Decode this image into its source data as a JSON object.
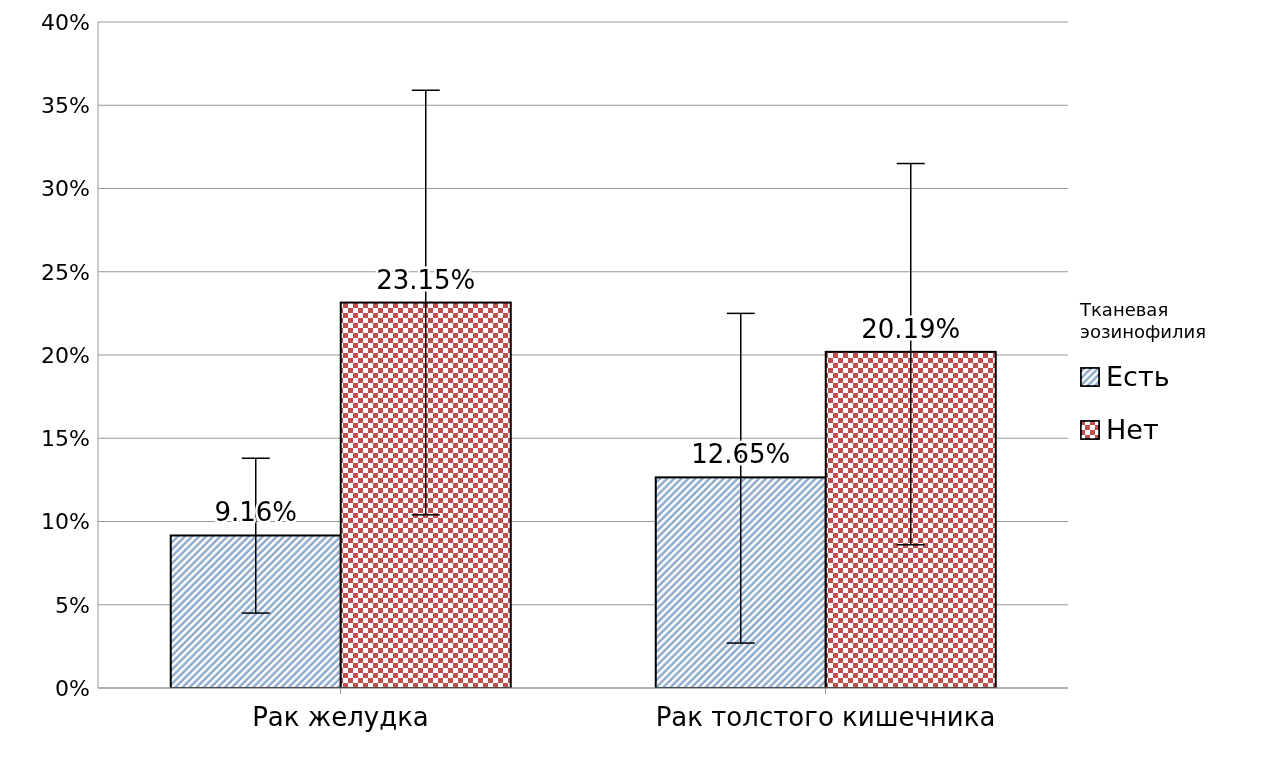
{
  "chart_data": {
    "type": "bar",
    "categories": [
      "Рак желудка",
      "Рак толстого кишечника"
    ],
    "legend_title": "Тканевая эозинофилия",
    "series": [
      {
        "name": "Есть",
        "color": "#8eaacb",
        "values": [
          9.16,
          12.65
        ],
        "errors": [
          [
            4.5,
            13.8
          ],
          [
            2.7,
            22.5
          ]
        ],
        "value_labels": [
          "9.16%",
          "12.65%"
        ]
      },
      {
        "name": "Нет",
        "color": "#c0504d",
        "values": [
          23.15,
          20.19
        ],
        "errors": [
          [
            10.4,
            35.9
          ],
          [
            8.6,
            31.5
          ]
        ],
        "value_labels": [
          "23.15%",
          "20.19%"
        ]
      }
    ],
    "ylim": [
      0,
      40
    ],
    "yticks": [
      {
        "value": 0,
        "label": "0%"
      },
      {
        "value": 5,
        "label": "5%"
      },
      {
        "value": 10,
        "label": "10%"
      },
      {
        "value": 15,
        "label": "15%"
      },
      {
        "value": 20,
        "label": "20%"
      },
      {
        "value": 25,
        "label": "25%"
      },
      {
        "value": 30,
        "label": "30%"
      },
      {
        "value": 35,
        "label": "35%"
      },
      {
        "value": 40,
        "label": "40%"
      }
    ],
    "grid": "y",
    "legend": "right"
  }
}
